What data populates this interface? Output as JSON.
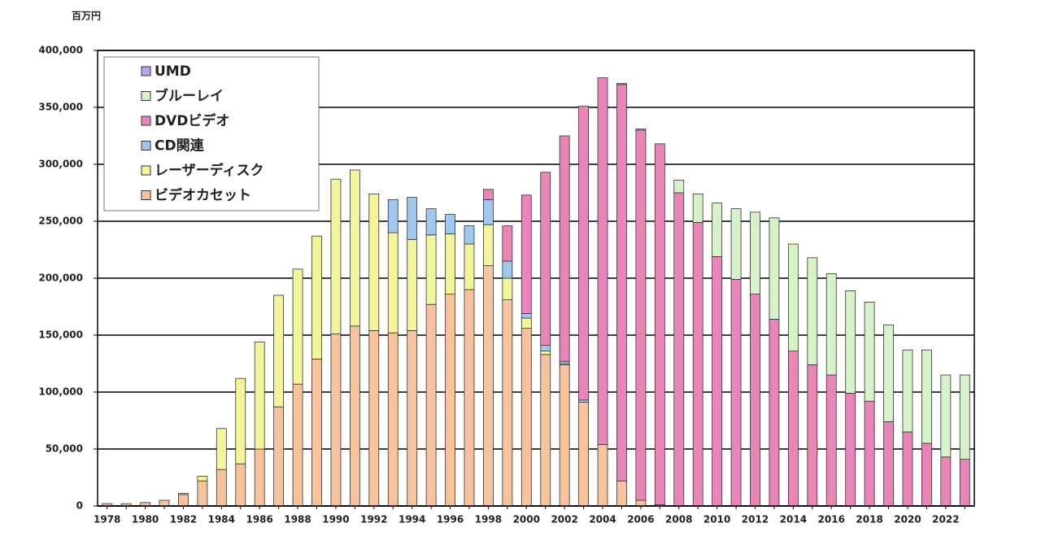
{
  "chart_data": {
    "type": "stacked_bar",
    "ylabel": "百万円",
    "categories": [
      "1978",
      null,
      "1980",
      null,
      "1982",
      null,
      "1984",
      null,
      "1986",
      null,
      "1988",
      null,
      "1990",
      null,
      "1992",
      null,
      "1994",
      null,
      "1996",
      null,
      "1998",
      null,
      "2000",
      null,
      "2002",
      null,
      "2004",
      null,
      "2006",
      null,
      "2008",
      null,
      "2010",
      null,
      "2012",
      null,
      "2014",
      null,
      "2016",
      null,
      "2018",
      null,
      "2020",
      null,
      "2022",
      null
    ],
    "series": [
      {
        "name": "ビデオカセット",
        "color": "#f7c39c",
        "values": [
          2000,
          2000,
          3000,
          5000,
          10000,
          22000,
          32000,
          37000,
          50000,
          87000,
          107000,
          129000,
          151000,
          158000,
          154000,
          152000,
          154000,
          177000,
          186000,
          190000,
          211000,
          181000,
          156000,
          133000,
          124000,
          91000,
          54000,
          22000,
          5000,
          1000,
          0,
          0,
          0,
          0,
          0,
          0,
          0,
          0,
          0,
          0,
          0,
          0,
          0,
          0,
          0,
          0
        ]
      },
      {
        "name": "レーザーディスク",
        "color": "#f3f59c",
        "values": [
          0,
          0,
          0,
          0,
          1000,
          4000,
          36000,
          75000,
          94000,
          98000,
          101000,
          108000,
          136000,
          137000,
          120000,
          88000,
          80000,
          61000,
          53000,
          40000,
          36000,
          19000,
          9000,
          3000,
          1000,
          0,
          0,
          0,
          0,
          0,
          0,
          0,
          0,
          0,
          0,
          0,
          0,
          0,
          0,
          0,
          0,
          0,
          0,
          0,
          0,
          0
        ]
      },
      {
        "name": "CD関連",
        "color": "#a0c8ee",
        "values": [
          0,
          0,
          0,
          0,
          0,
          0,
          0,
          0,
          0,
          0,
          0,
          0,
          0,
          0,
          0,
          29000,
          37000,
          23000,
          17000,
          16000,
          22000,
          15000,
          4000,
          5000,
          2000,
          2000,
          0,
          0,
          0,
          0,
          0,
          0,
          0,
          0,
          0,
          0,
          0,
          0,
          0,
          0,
          0,
          0,
          0,
          0,
          0,
          0
        ]
      },
      {
        "name": "DVDビデオ",
        "color": "#e986b7",
        "values": [
          0,
          0,
          0,
          0,
          0,
          0,
          0,
          0,
          0,
          0,
          0,
          0,
          0,
          0,
          0,
          0,
          0,
          0,
          0,
          0,
          9000,
          31000,
          104000,
          152000,
          198000,
          258000,
          322000,
          348000,
          325000,
          317000,
          275000,
          249000,
          219000,
          199000,
          186000,
          164000,
          136000,
          124000,
          115000,
          99000,
          92000,
          74000,
          65000,
          55000,
          43000,
          41000
        ]
      },
      {
        "name": "ブルーレイ",
        "color": "#d7f2ca",
        "values": [
          0,
          0,
          0,
          0,
          0,
          0,
          0,
          0,
          0,
          0,
          0,
          0,
          0,
          0,
          0,
          0,
          0,
          0,
          0,
          0,
          0,
          0,
          0,
          0,
          0,
          0,
          0,
          0,
          0,
          0,
          11000,
          25000,
          47000,
          62000,
          72000,
          89000,
          94000,
          94000,
          89000,
          90000,
          87000,
          85000,
          72000,
          82000,
          72000,
          74000
        ]
      },
      {
        "name": "UMD",
        "color": "#b9a6f0",
        "values": [
          0,
          0,
          0,
          0,
          0,
          0,
          0,
          0,
          0,
          0,
          0,
          0,
          0,
          0,
          0,
          0,
          0,
          0,
          0,
          0,
          0,
          0,
          0,
          0,
          0,
          0,
          0,
          1000,
          1000,
          0,
          0,
          0,
          0,
          0,
          0,
          0,
          0,
          0,
          0,
          0,
          0,
          0,
          0,
          0,
          0,
          0
        ]
      }
    ],
    "ylim": [
      0,
      400000
    ],
    "yticks": [
      0,
      {
        "value": 50000,
        "label": "50,000"
      },
      {
        "value": 100000,
        "label": "100,000"
      },
      {
        "value": 150000,
        "label": "150,000"
      },
      {
        "value": 200000,
        "label": "200,000"
      },
      {
        "value": 250000,
        "label": "250,000"
      },
      {
        "value": 300000,
        "label": "300,000"
      },
      {
        "value": 350000,
        "label": "350,000"
      },
      {
        "value": 400000,
        "label": "400,000"
      }
    ],
    "grid": true,
    "legend": "upper left"
  }
}
